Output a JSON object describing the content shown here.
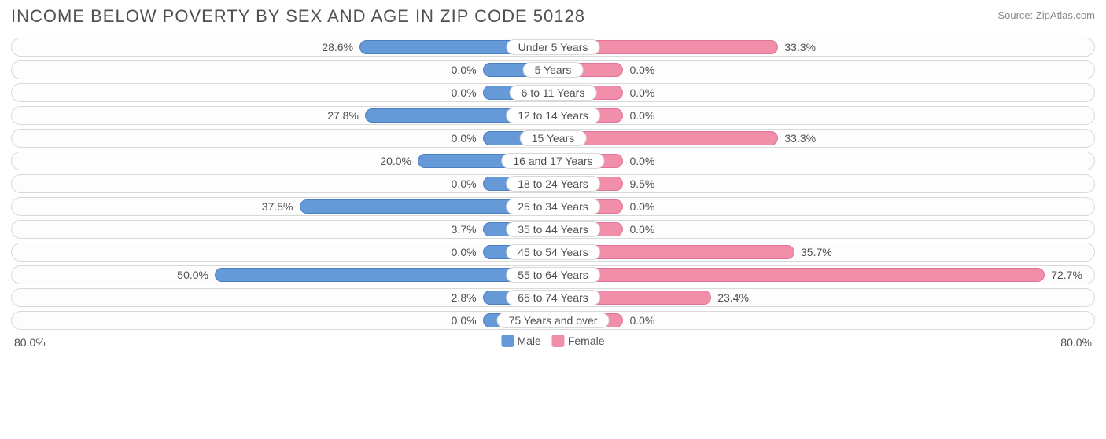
{
  "title": "INCOME BELOW POVERTY BY SEX AND AGE IN ZIP CODE 50128",
  "source": "Source: ZipAtlas.com",
  "chart": {
    "type": "diverging-bar",
    "axis_max": 80.0,
    "axis_label_left": "80.0%",
    "axis_label_right": "80.0%",
    "min_bar_percent": 13.0,
    "colors": {
      "male_fill": "#6699d8",
      "male_border": "#4a7fc4",
      "female_fill": "#f18eaa",
      "female_border": "#e27296",
      "row_border": "#d9d9d9",
      "text": "#505050",
      "background": "#ffffff"
    },
    "legend": [
      {
        "label": "Male",
        "color": "#6699d8"
      },
      {
        "label": "Female",
        "color": "#f18eaa"
      }
    ],
    "categories": [
      {
        "label": "Under 5 Years",
        "male": 28.6,
        "female": 33.3
      },
      {
        "label": "5 Years",
        "male": 0.0,
        "female": 0.0
      },
      {
        "label": "6 to 11 Years",
        "male": 0.0,
        "female": 0.0
      },
      {
        "label": "12 to 14 Years",
        "male": 27.8,
        "female": 0.0
      },
      {
        "label": "15 Years",
        "male": 0.0,
        "female": 33.3
      },
      {
        "label": "16 and 17 Years",
        "male": 20.0,
        "female": 0.0
      },
      {
        "label": "18 to 24 Years",
        "male": 0.0,
        "female": 9.5
      },
      {
        "label": "25 to 34 Years",
        "male": 37.5,
        "female": 0.0
      },
      {
        "label": "35 to 44 Years",
        "male": 3.7,
        "female": 0.0
      },
      {
        "label": "45 to 54 Years",
        "male": 0.0,
        "female": 35.7
      },
      {
        "label": "55 to 64 Years",
        "male": 50.0,
        "female": 72.7
      },
      {
        "label": "65 to 74 Years",
        "male": 2.8,
        "female": 23.4
      },
      {
        "label": "75 Years and over",
        "male": 0.0,
        "female": 0.0
      }
    ]
  }
}
